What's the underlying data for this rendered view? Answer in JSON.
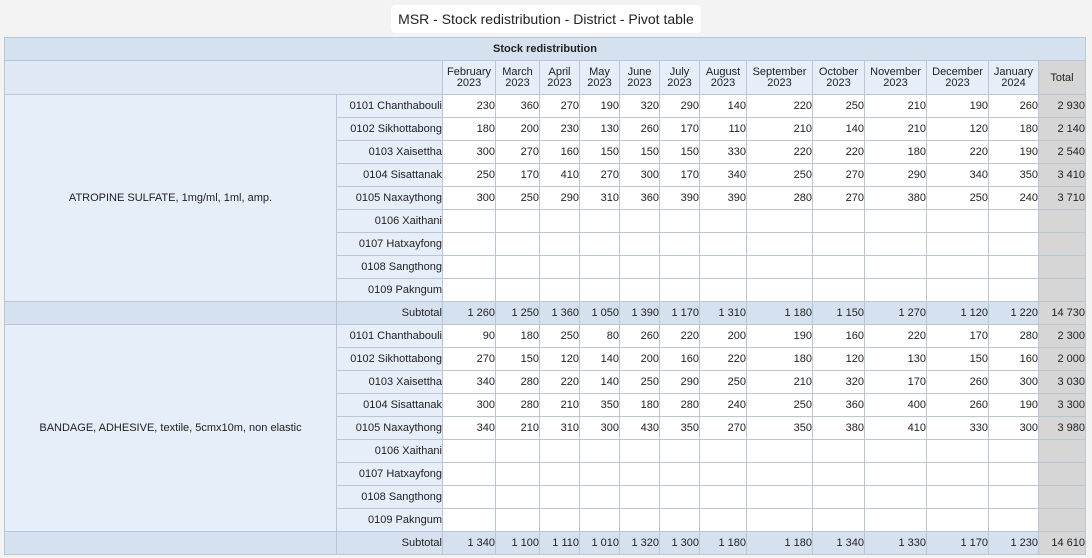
{
  "page_title": "MSR - Stock redistribution - District - Pivot table",
  "header_title": "Stock redistribution",
  "total_label": "Total",
  "subtotal_label": "Subtotal",
  "months": [
    {
      "name": "February",
      "year": "2023"
    },
    {
      "name": "March",
      "year": "2023"
    },
    {
      "name": "April",
      "year": "2023"
    },
    {
      "name": "May",
      "year": "2023"
    },
    {
      "name": "June",
      "year": "2023"
    },
    {
      "name": "July",
      "year": "2023"
    },
    {
      "name": "August",
      "year": "2023"
    },
    {
      "name": "September",
      "year": "2023"
    },
    {
      "name": "October",
      "year": "2023"
    },
    {
      "name": "November",
      "year": "2023"
    },
    {
      "name": "December",
      "year": "2023"
    },
    {
      "name": "January",
      "year": "2024"
    }
  ],
  "groups": [
    {
      "item": "ATROPINE SULFATE, 1mg/ml, 1ml, amp.",
      "rows": [
        {
          "district": "0101 Chanthabouli",
          "values": [
            "230",
            "360",
            "270",
            "190",
            "320",
            "290",
            "140",
            "220",
            "250",
            "210",
            "190",
            "260"
          ],
          "total": "2 930"
        },
        {
          "district": "0102 Sikhottabong",
          "values": [
            "180",
            "200",
            "230",
            "130",
            "260",
            "170",
            "110",
            "210",
            "140",
            "210",
            "120",
            "180"
          ],
          "total": "2 140"
        },
        {
          "district": "0103 Xaisettha",
          "values": [
            "300",
            "270",
            "160",
            "150",
            "150",
            "150",
            "330",
            "220",
            "220",
            "180",
            "220",
            "190"
          ],
          "total": "2 540"
        },
        {
          "district": "0104 Sisattanak",
          "values": [
            "250",
            "170",
            "410",
            "270",
            "300",
            "170",
            "340",
            "250",
            "270",
            "290",
            "340",
            "350"
          ],
          "total": "3 410"
        },
        {
          "district": "0105 Naxaythong",
          "values": [
            "300",
            "250",
            "290",
            "310",
            "360",
            "390",
            "390",
            "280",
            "270",
            "380",
            "250",
            "240"
          ],
          "total": "3 710"
        },
        {
          "district": "0106 Xaithani",
          "values": [
            "",
            "",
            "",
            "",
            "",
            "",
            "",
            "",
            "",
            "",
            "",
            ""
          ],
          "total": ""
        },
        {
          "district": "0107 Hatxayfong",
          "values": [
            "",
            "",
            "",
            "",
            "",
            "",
            "",
            "",
            "",
            "",
            "",
            ""
          ],
          "total": ""
        },
        {
          "district": "0108 Sangthong",
          "values": [
            "",
            "",
            "",
            "",
            "",
            "",
            "",
            "",
            "",
            "",
            "",
            ""
          ],
          "total": ""
        },
        {
          "district": "0109 Pakngum",
          "values": [
            "",
            "",
            "",
            "",
            "",
            "",
            "",
            "",
            "",
            "",
            "",
            ""
          ],
          "total": ""
        }
      ],
      "subtotal": {
        "values": [
          "1 260",
          "1 250",
          "1 360",
          "1 050",
          "1 390",
          "1 170",
          "1 310",
          "1 180",
          "1 150",
          "1 270",
          "1 120",
          "1 220"
        ],
        "total": "14 730"
      }
    },
    {
      "item": "BANDAGE, ADHESIVE, textile, 5cmx10m, non elastic",
      "rows": [
        {
          "district": "0101 Chanthabouli",
          "values": [
            "90",
            "180",
            "250",
            "80",
            "260",
            "220",
            "200",
            "190",
            "160",
            "220",
            "170",
            "280"
          ],
          "total": "2 300"
        },
        {
          "district": "0102 Sikhottabong",
          "values": [
            "270",
            "150",
            "120",
            "140",
            "200",
            "160",
            "220",
            "180",
            "120",
            "130",
            "150",
            "160"
          ],
          "total": "2 000"
        },
        {
          "district": "0103 Xaisettha",
          "values": [
            "340",
            "280",
            "220",
            "140",
            "250",
            "290",
            "250",
            "210",
            "320",
            "170",
            "260",
            "300"
          ],
          "total": "3 030"
        },
        {
          "district": "0104 Sisattanak",
          "values": [
            "300",
            "280",
            "210",
            "350",
            "180",
            "280",
            "240",
            "250",
            "360",
            "400",
            "260",
            "190"
          ],
          "total": "3 300"
        },
        {
          "district": "0105 Naxaythong",
          "values": [
            "340",
            "210",
            "310",
            "300",
            "430",
            "350",
            "270",
            "350",
            "380",
            "410",
            "330",
            "300"
          ],
          "total": "3 980"
        },
        {
          "district": "0106 Xaithani",
          "values": [
            "",
            "",
            "",
            "",
            "",
            "",
            "",
            "",
            "",
            "",
            "",
            ""
          ],
          "total": ""
        },
        {
          "district": "0107 Hatxayfong",
          "values": [
            "",
            "",
            "",
            "",
            "",
            "",
            "",
            "",
            "",
            "",
            "",
            ""
          ],
          "total": ""
        },
        {
          "district": "0108 Sangthong",
          "values": [
            "",
            "",
            "",
            "",
            "",
            "",
            "",
            "",
            "",
            "",
            "",
            ""
          ],
          "total": ""
        },
        {
          "district": "0109 Pakngum",
          "values": [
            "",
            "",
            "",
            "",
            "",
            "",
            "",
            "",
            "",
            "",
            "",
            ""
          ],
          "total": ""
        }
      ],
      "subtotal": {
        "values": [
          "1 340",
          "1 100",
          "1 110",
          "1 010",
          "1 320",
          "1 300",
          "1 180",
          "1 180",
          "1 340",
          "1 330",
          "1 170",
          "1 230"
        ],
        "total": "14 610"
      }
    }
  ]
}
